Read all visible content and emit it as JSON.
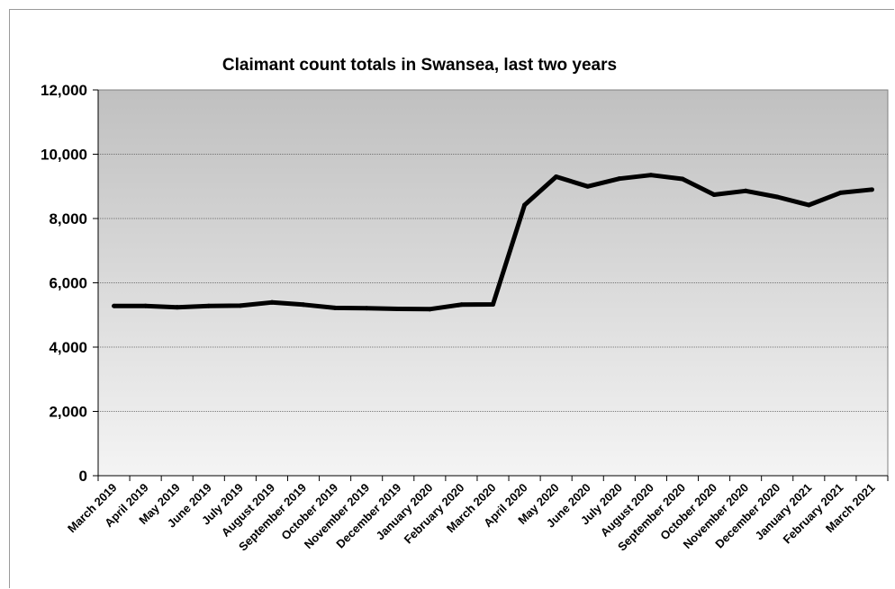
{
  "chart_data": {
    "type": "line",
    "title": "Claimant count totals in Swansea, last two years",
    "xlabel": "",
    "ylabel": "",
    "ylim": [
      0,
      12000
    ],
    "yticks": [
      0,
      2000,
      4000,
      6000,
      8000,
      10000,
      12000
    ],
    "ytick_labels": [
      "0",
      "2,000",
      "4,000",
      "6,000",
      "8,000",
      "10,000",
      "12,000"
    ],
    "grid": true,
    "categories": [
      "March 2019",
      "April 2019",
      "May 2019",
      "June 2019",
      "July 2019",
      "August 2019",
      "September 2019",
      "October 2019",
      "November 2019",
      "December 2019",
      "January 2020",
      "February 2020",
      "March 2020",
      "April 2020",
      "May 2020",
      "June 2020",
      "July 2020",
      "August 2020",
      "September 2020",
      "October 2020",
      "November 2020",
      "December 2020",
      "January 2021",
      "February 2021",
      "March 2021"
    ],
    "series": [
      {
        "values": [
          5280,
          5280,
          5240,
          5280,
          5290,
          5390,
          5320,
          5220,
          5210,
          5190,
          5180,
          5320,
          5330,
          8420,
          9300,
          9000,
          9240,
          9350,
          9230,
          8740,
          8860,
          8670,
          8420,
          8800,
          8900
        ]
      }
    ],
    "colors": {
      "line": "#000000",
      "plot_top": "#c0c0c0",
      "plot_bottom": "#f4f4f4",
      "grid": "#555555"
    }
  }
}
